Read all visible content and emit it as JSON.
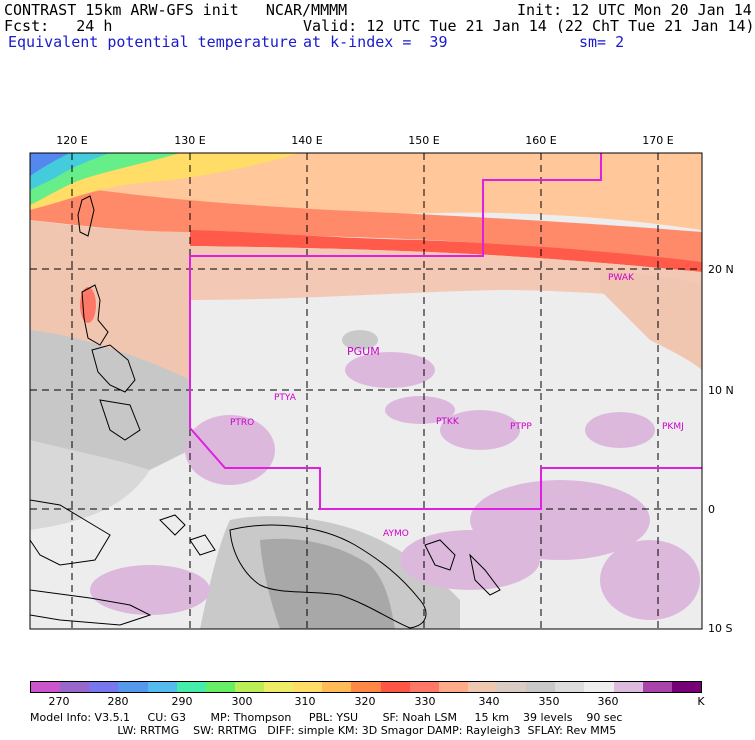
{
  "header": {
    "title": "CONTRAST 15km ARW-GFS init   NCAR/MMMM",
    "init": "Init: 12 UTC Mon 20 Jan 14",
    "fcst": "Fcst:   24 h",
    "valid": "Valid: 12 UTC Tue 21 Jan 14 (22 ChT Tue 21 Jan 14)",
    "field": "Equivalent potential temperature",
    "level": "at k-index =  39",
    "smooth": "sm= 2"
  },
  "map": {
    "lon_labels": [
      "120 E",
      "130 E",
      "140 E",
      "150 E",
      "160 E",
      "170 E"
    ],
    "lat_labels": [
      "20 N",
      "10 N",
      "0",
      "10 S"
    ],
    "stations": [
      "PWAK",
      "PGUM",
      "PTYA",
      "PTRO",
      "PTKK",
      "PTPP",
      "PKMJ",
      "AYMO"
    ]
  },
  "colorbar": {
    "colors": [
      "#cc55cc",
      "#9966cc",
      "#7777ee",
      "#5599ee",
      "#55bbee",
      "#44eeaa",
      "#66ee66",
      "#bbee55",
      "#eeee66",
      "#ffdd66",
      "#ffbb55",
      "#ff8844",
      "#ff5544",
      "#ff7766",
      "#ffaa88",
      "#eec8b0",
      "#d8ccc4",
      "#c8c8c8",
      "#dcdcdc",
      "#eeeeee",
      "#ddbbdd",
      "#aa44aa",
      "#770077"
    ],
    "labels": [
      "270",
      "280",
      "290",
      "300",
      "310",
      "320",
      "330",
      "340",
      "350",
      "360"
    ],
    "unit": "K"
  },
  "footer": {
    "line1": "Model Info: V3.5.1     CU: G3       MP: Thompson     PBL: YSU       SF: Noah LSM     15 km    39 levels    90 sec",
    "line2": "                         LW: RRTMG    SW: RRTMG   DIFF: simple KM: 3D Smagor DAMP: Rayleigh3  SFLAY: Rev MM5"
  }
}
